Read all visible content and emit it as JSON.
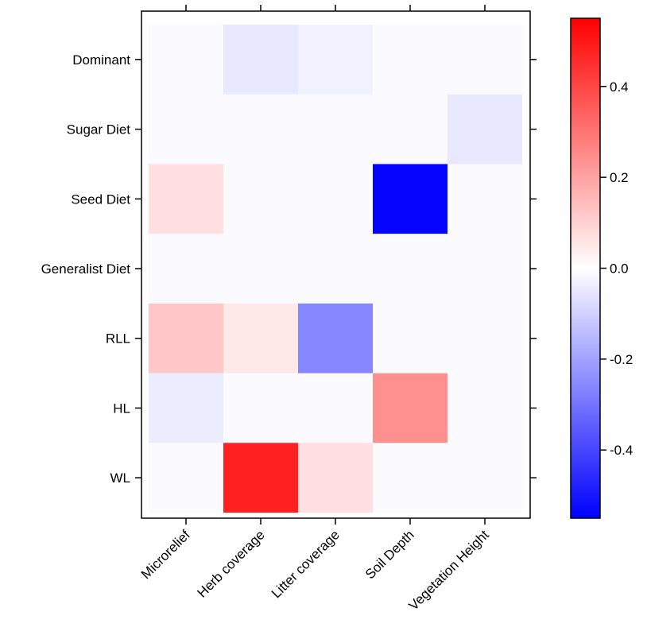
{
  "chart_data": {
    "type": "heatmap",
    "x_categories": [
      "Microrelief",
      "Herb coverage",
      "Litter coverage",
      "Soil Depth",
      "Vegetation Height"
    ],
    "y_categories": [
      "Dominant",
      "Sugar Diet",
      "Seed Diet",
      "Generalist Diet",
      "RLL",
      "HL",
      "WL"
    ],
    "values": [
      [
        0.0,
        -0.05,
        -0.03,
        0.0,
        0.0
      ],
      [
        0.0,
        0.0,
        0.0,
        0.0,
        -0.05
      ],
      [
        0.07,
        0.0,
        0.0,
        -0.54,
        0.0
      ],
      [
        0.0,
        0.0,
        0.0,
        0.0,
        0.0
      ],
      [
        0.12,
        0.05,
        -0.26,
        0.0,
        0.0
      ],
      [
        -0.04,
        0.0,
        0.0,
        0.24,
        0.0
      ],
      [
        0.0,
        0.48,
        0.07,
        0.0,
        0.0
      ]
    ],
    "colorbar": {
      "range": [
        -0.55,
        0.55
      ],
      "ticks": [
        0.4,
        0.2,
        0.0,
        -0.2,
        -0.4
      ],
      "tick_labels": [
        "0.4",
        "0.2",
        "0.0",
        "-0.2",
        "-0.4"
      ],
      "low_color": "#0000ff",
      "mid_color": "#ffffff",
      "high_color": "#ff0000"
    },
    "background_color": "#fbfbff",
    "title": "",
    "xlabel": "",
    "ylabel": ""
  }
}
